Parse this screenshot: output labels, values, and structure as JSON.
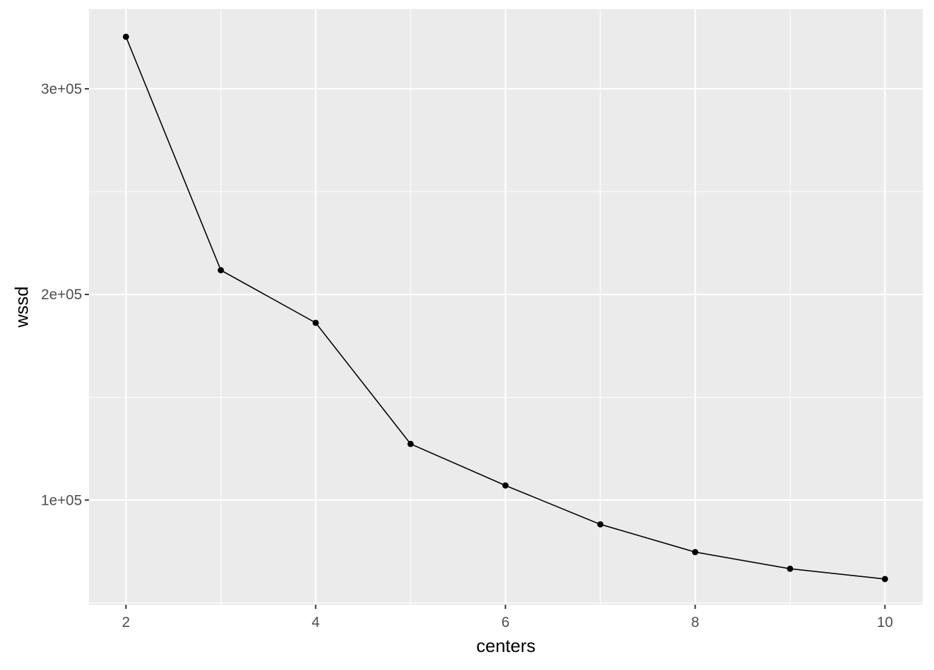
{
  "chart_data": {
    "type": "line",
    "title": "",
    "xlabel": "centers",
    "ylabel": "wssd",
    "x": [
      2,
      3,
      4,
      5,
      6,
      7,
      8,
      9,
      10
    ],
    "series": [
      {
        "values": [
          325300,
          211800,
          186200,
          127300,
          107100,
          88200,
          74700,
          66600,
          61600
        ]
      }
    ],
    "xlim": [
      1.61,
      10.4
    ],
    "ylim": [
      49100,
      338800
    ],
    "xticks": [
      2,
      4,
      6,
      8,
      10
    ],
    "xtick_labels": [
      "2",
      "4",
      "6",
      "8",
      "10"
    ],
    "yticks": [
      100000,
      200000,
      300000
    ],
    "ytick_labels": [
      "1e+05",
      "2e+05",
      "3e+05"
    ],
    "grid": true,
    "markers": true,
    "colors": {
      "panel": "#EBEBEB",
      "grid": "#FFFFFF",
      "line": "#000000",
      "tick_text": "#4D4D4D"
    }
  }
}
